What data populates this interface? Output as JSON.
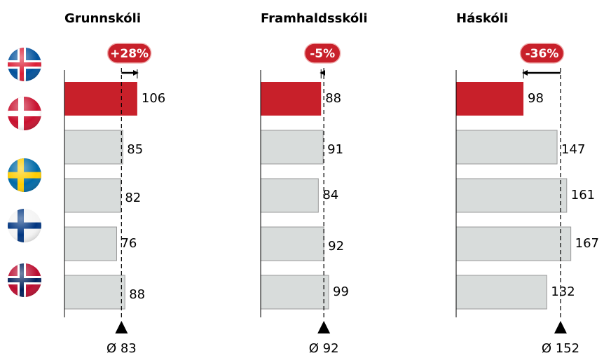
{
  "chart_data": [
    {
      "type": "bar",
      "title": "Grunnskóli",
      "values": [
        106,
        85,
        82,
        76,
        88
      ],
      "colors": [
        "#c8202a",
        "#d8dcdb",
        "#d8dcdb",
        "#d8dcdb",
        "#d8dcdb"
      ],
      "xlim": [
        0,
        200
      ],
      "average": 83,
      "average_label": "Ø 83",
      "change": 28,
      "change_label": "+28%"
    },
    {
      "type": "bar",
      "title": "Framhaldsskóli",
      "values": [
        88,
        91,
        84,
        92,
        99
      ],
      "colors": [
        "#c8202a",
        "#d8dcdb",
        "#d8dcdb",
        "#d8dcdb",
        "#d8dcdb"
      ],
      "xlim": [
        0,
        200
      ],
      "average": 92,
      "average_label": "Ø 92",
      "change": -5,
      "change_label": "-5%"
    },
    {
      "type": "bar",
      "title": "Háskóli",
      "values": [
        98,
        147,
        161,
        167,
        132
      ],
      "colors": [
        "#c8202a",
        "#d8dcdb",
        "#d8dcdb",
        "#d8dcdb",
        "#d8dcdb"
      ],
      "xlim": [
        0,
        200
      ],
      "average": 152,
      "average_label": "Ø 152",
      "change": -36,
      "change_label": "-36%"
    }
  ]
}
